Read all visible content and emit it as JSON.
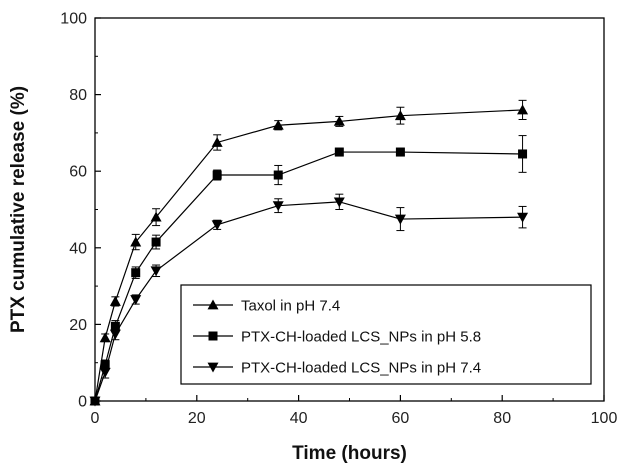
{
  "chart_data": {
    "type": "line",
    "title": "",
    "xlabel": "Time (hours)",
    "ylabel": "PTX cumulative release (%)",
    "xlim": [
      0,
      100
    ],
    "ylim": [
      0,
      100
    ],
    "xticks": [
      0,
      20,
      40,
      60,
      80,
      100
    ],
    "yticks": [
      0,
      20,
      40,
      60,
      80,
      100
    ],
    "grid": false,
    "legend_position": "bottom-right",
    "series": [
      {
        "name": "Taxol in pH 7.4",
        "marker": "triangle-up",
        "color": "#000000",
        "points": [
          {
            "x": 0,
            "y": 0,
            "err": 0
          },
          {
            "x": 2,
            "y": 16.5,
            "err": 1.0
          },
          {
            "x": 4,
            "y": 26,
            "err": 1.2
          },
          {
            "x": 8,
            "y": 41.5,
            "err": 2.0
          },
          {
            "x": 12,
            "y": 48,
            "err": 2.2
          },
          {
            "x": 24,
            "y": 67.5,
            "err": 2.0
          },
          {
            "x": 36,
            "y": 72,
            "err": 1.2
          },
          {
            "x": 48,
            "y": 73,
            "err": 1.3
          },
          {
            "x": 60,
            "y": 74.5,
            "err": 2.2
          },
          {
            "x": 84,
            "y": 76,
            "err": 2.5
          }
        ]
      },
      {
        "name": "PTX-CH-loaded LCS_NPs in pH 5.8",
        "marker": "square",
        "color": "#000000",
        "points": [
          {
            "x": 0,
            "y": 0,
            "err": 0
          },
          {
            "x": 2,
            "y": 9.5,
            "err": 1.2
          },
          {
            "x": 4,
            "y": 19.5,
            "err": 1.5
          },
          {
            "x": 8,
            "y": 33.5,
            "err": 1.5
          },
          {
            "x": 12,
            "y": 41.5,
            "err": 1.8
          },
          {
            "x": 24,
            "y": 59,
            "err": 1.3
          },
          {
            "x": 36,
            "y": 59,
            "err": 2.5
          },
          {
            "x": 48,
            "y": 65,
            "err": 1.0
          },
          {
            "x": 60,
            "y": 65,
            "err": 1.0
          },
          {
            "x": 84,
            "y": 64.5,
            "err": 4.8
          }
        ]
      },
      {
        "name": "PTX-CH-loaded LCS_NPs in pH 7.4",
        "marker": "triangle-down",
        "color": "#000000",
        "points": [
          {
            "x": 0,
            "y": 0,
            "err": 0
          },
          {
            "x": 2,
            "y": 7.5,
            "err": 1.5
          },
          {
            "x": 4,
            "y": 17.5,
            "err": 1.5
          },
          {
            "x": 8,
            "y": 26.5,
            "err": 1.2
          },
          {
            "x": 12,
            "y": 34,
            "err": 1.5
          },
          {
            "x": 24,
            "y": 46,
            "err": 1.2
          },
          {
            "x": 36,
            "y": 51,
            "err": 1.8
          },
          {
            "x": 48,
            "y": 52,
            "err": 2.0
          },
          {
            "x": 60,
            "y": 47.5,
            "err": 3.0
          },
          {
            "x": 84,
            "y": 48,
            "err": 2.8
          }
        ]
      }
    ]
  }
}
